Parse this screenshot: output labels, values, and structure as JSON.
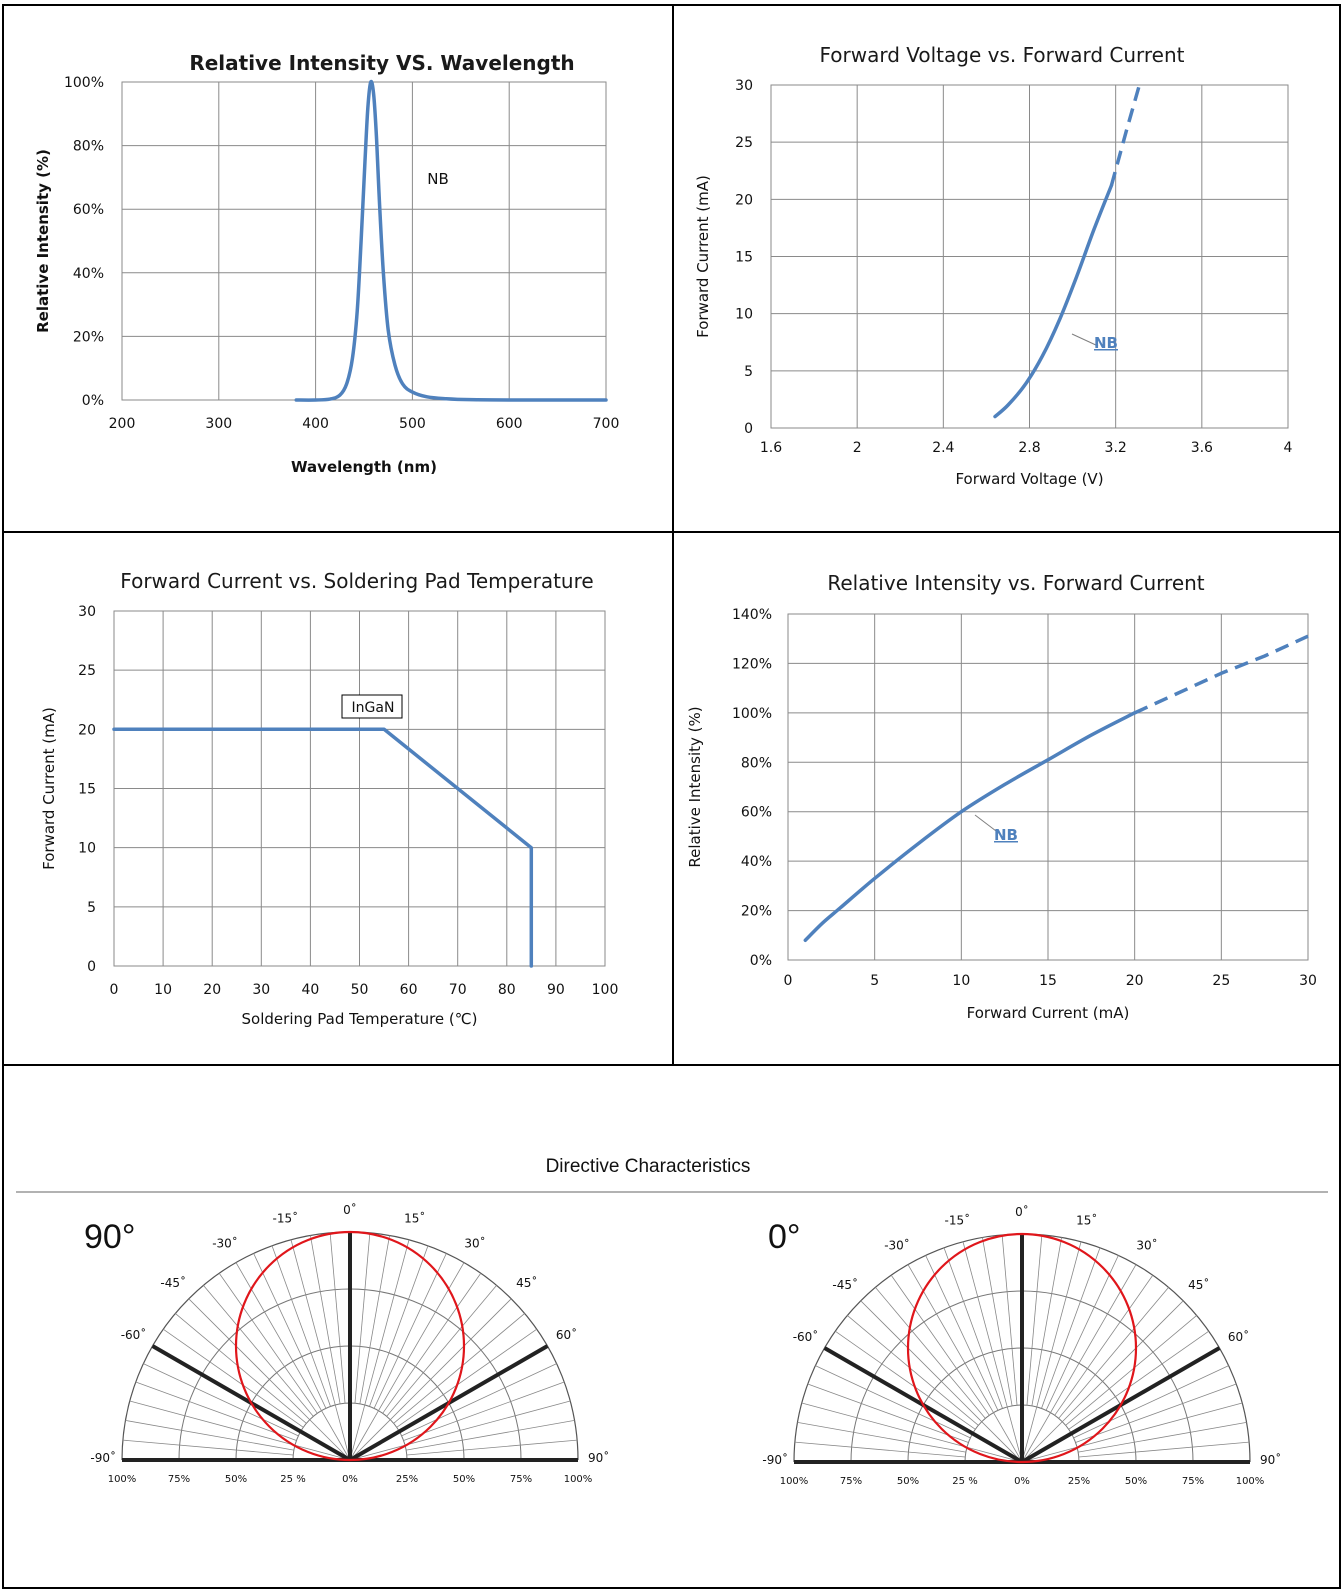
{
  "colors": {
    "series": "#4f81bd",
    "polar_curve": "#e0161b",
    "grid": "#8a8a8a"
  },
  "chart_data": [
    {
      "id": "spectrum",
      "type": "line",
      "title": "Relative Intensity VS. Wavelength",
      "xlabel": "Wavelength (nm)",
      "ylabel": "Relative Intensity (%)",
      "xlim": [
        200,
        700
      ],
      "ylim": [
        0,
        100
      ],
      "x_ticks": [
        "200",
        "300",
        "400",
        "500",
        "600",
        "700"
      ],
      "y_ticks": [
        "0%",
        "20%",
        "40%",
        "60%",
        "80%",
        "100%"
      ],
      "grid": true,
      "series": [
        {
          "name": "NB",
          "x": [
            380,
            400,
            415,
            425,
            432,
            438,
            443,
            447,
            451,
            454,
            457,
            460,
            463,
            466,
            470,
            475,
            482,
            490,
            500,
            515,
            535,
            560,
            600,
            650,
            700
          ],
          "y": [
            0,
            0,
            0.3,
            1.5,
            5,
            13,
            28,
            50,
            75,
            92,
            100,
            96,
            82,
            62,
            40,
            22,
            11,
            5,
            2.5,
            1,
            0.4,
            0.1,
            0,
            0,
            0
          ]
        }
      ],
      "label_text": "NB"
    },
    {
      "id": "iv",
      "type": "line",
      "title": "Forward Voltage vs. Forward Current",
      "xlabel": "Forward Voltage (V)",
      "ylabel": "Forward Current  (mA)",
      "xlim": [
        1.6,
        4
      ],
      "ylim": [
        0,
        30
      ],
      "x_ticks": [
        "1.6",
        "2",
        "2.4",
        "2.8",
        "3.2",
        "3.6",
        "4"
      ],
      "y_ticks": [
        "0",
        "5",
        "10",
        "15",
        "20",
        "25",
        "30"
      ],
      "grid": true,
      "series": [
        {
          "name": "NB",
          "x": [
            2.64,
            2.7,
            2.78,
            2.86,
            2.94,
            3.02,
            3.1,
            3.18
          ],
          "y": [
            1,
            2,
            3.8,
            6.3,
            9.5,
            13.3,
            17.4,
            21.2
          ],
          "dashed_x": [
            3.18,
            3.25,
            3.31
          ],
          "dashed_y": [
            21.2,
            26,
            30
          ]
        }
      ],
      "label_text": "NB"
    },
    {
      "id": "derating",
      "type": "line",
      "title": "Forward Current  vs. Soldering Pad Temperature",
      "xlabel": "Soldering Pad Temperature (℃)",
      "ylabel": "Forward Current  (mA)",
      "xlim": [
        0,
        100
      ],
      "ylim": [
        0,
        30
      ],
      "x_ticks": [
        "0",
        "10",
        "20",
        "30",
        "40",
        "50",
        "60",
        "70",
        "80",
        "90",
        "100"
      ],
      "y_ticks": [
        "0",
        "5",
        "10",
        "15",
        "20",
        "25",
        "30"
      ],
      "grid": true,
      "series": [
        {
          "name": "InGaN",
          "x": [
            0,
            55,
            85,
            85
          ],
          "y": [
            20,
            20,
            10,
            0
          ]
        }
      ],
      "label_text": "InGaN"
    },
    {
      "id": "ri_if",
      "type": "line",
      "title": "Relative Intensity  vs. Forward Current",
      "xlabel": "Forward Current (mA)",
      "ylabel": "Relative Intensity (%)",
      "xlim": [
        0,
        30
      ],
      "ylim": [
        0,
        140
      ],
      "x_ticks": [
        "0",
        "5",
        "10",
        "15",
        "20",
        "25",
        "30"
      ],
      "y_ticks": [
        "0%",
        "20%",
        "40%",
        "60%",
        "80%",
        "100%",
        "120%",
        "140%"
      ],
      "grid": true,
      "series": [
        {
          "name": "NB",
          "x": [
            1,
            2,
            3,
            5,
            7.5,
            10,
            12.5,
            15,
            17.5,
            20
          ],
          "y": [
            8,
            15,
            21,
            33,
            47,
            60,
            71,
            81,
            91,
            100
          ],
          "dashed_x": [
            20,
            22.5,
            25,
            27.5,
            30
          ],
          "dashed_y": [
            100,
            108,
            116,
            123,
            131
          ]
        }
      ],
      "label_text": "NB"
    }
  ],
  "directive": {
    "title": "Directive Characteristics",
    "charts": [
      {
        "id": "polar-left",
        "label": "90°",
        "type": "polar",
        "beam_curve": "approx. circle from 0% at 0° to 100% forward",
        "angle_labels": [
          "0˚",
          "15˚",
          "30˚",
          "45˚",
          "60˚",
          "90˚",
          "-15˚",
          "-30˚",
          "-45˚",
          "-60˚",
          "-90˚"
        ],
        "radial_labels": [
          "100%",
          "75%",
          "50%",
          "25 %",
          "0%",
          "25%",
          "50%",
          "75%",
          "100%"
        ],
        "half_intensity_angle_deg": 60
      },
      {
        "id": "polar-right",
        "label": "0°",
        "type": "polar",
        "angle_labels": [
          "0˚",
          "15˚",
          "30˚",
          "45˚",
          "60˚",
          "90˚",
          "-15˚",
          "-30˚",
          "-45˚",
          "-60˚",
          "-90˚"
        ],
        "radial_labels": [
          "100%",
          "75%",
          "50%",
          "25 %",
          "0%",
          "25%",
          "50%",
          "75%",
          "100%"
        ],
        "half_intensity_angle_deg": 60
      }
    ]
  }
}
